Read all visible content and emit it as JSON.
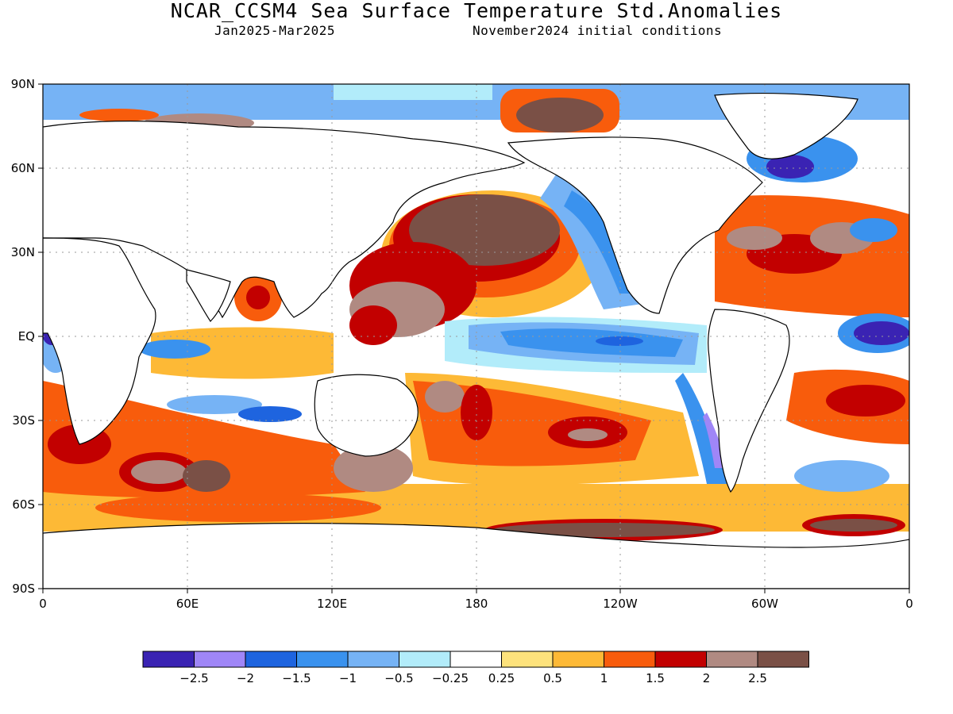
{
  "header": {
    "title": "NCAR_CCSM4 Sea Surface Temperature Std.Anomalies",
    "period": "Jan2025-Mar2025",
    "initial_conditions": "November2024 initial conditions"
  },
  "map": {
    "y_ticks": [
      "90N",
      "60N",
      "30N",
      "EQ",
      "30S",
      "60S",
      "90S"
    ],
    "x_ticks": [
      "0",
      "60E",
      "120E",
      "180",
      "120W",
      "60W",
      "0"
    ],
    "grid": true
  },
  "colorbar": {
    "labels": [
      "-2.5",
      "-2",
      "-1.5",
      "-1",
      "-0.5",
      "-0.25",
      "0.25",
      "0.5",
      "1",
      "1.5",
      "2",
      "2.5"
    ],
    "colors": [
      "#3a23b3",
      "#9f86f7",
      "#1e64df",
      "#3a92ee",
      "#76b3f5",
      "#b2ecfa",
      "#ffffff",
      "#fde27c",
      "#fdb936",
      "#f85c0c",
      "#c20000",
      "#b08a82",
      "#7a5046"
    ]
  }
}
